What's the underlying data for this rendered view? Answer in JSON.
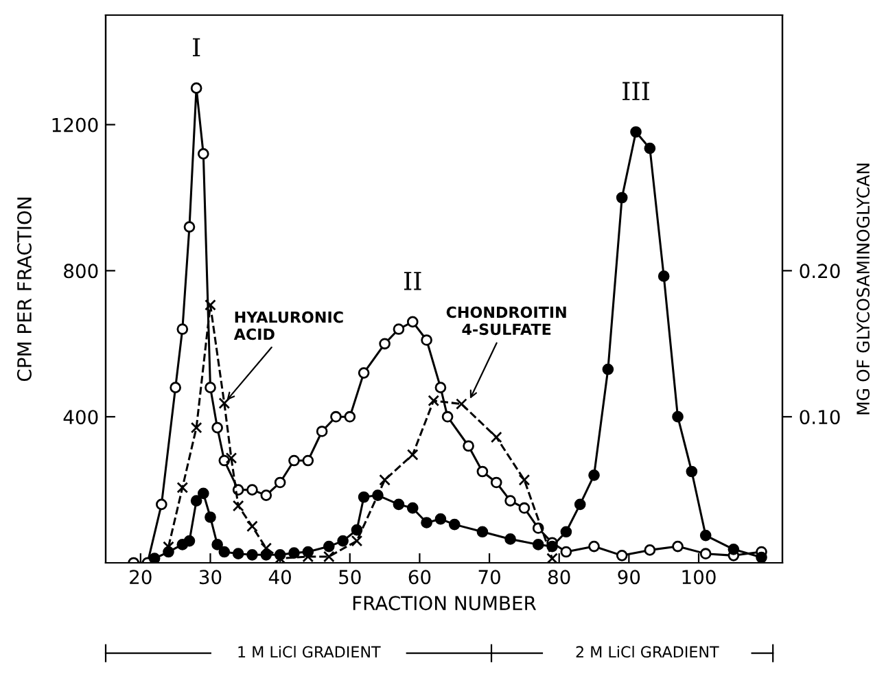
{
  "chart_data": {
    "type": "line",
    "xlabel": "FRACTION NUMBER",
    "ylabel": "CPM PER FRACTION",
    "y2label": "MG OF GLYCOSAMINOGLYCAN",
    "xlim": [
      15,
      112
    ],
    "xticks": [
      20,
      30,
      40,
      50,
      60,
      70,
      80,
      90,
      100
    ],
    "ylim": [
      0,
      1500
    ],
    "yticks": [
      400,
      800,
      1200
    ],
    "y2lim": [
      0,
      0.375
    ],
    "y2ticks": [
      {
        "value": 0.1,
        "label": "0.10"
      },
      {
        "value": 0.2,
        "label": "0.20"
      }
    ],
    "grid": false,
    "legend": false,
    "series": [
      {
        "color": "#ffffff",
        "marker": "circle",
        "line_style": "solid",
        "x": [
          19,
          21,
          23,
          25,
          26,
          27,
          28,
          29,
          30,
          31,
          32,
          34,
          36,
          38,
          40,
          42,
          44,
          46,
          48,
          50,
          52,
          55,
          57,
          59,
          61,
          63,
          64,
          67,
          69,
          71,
          73,
          75,
          77,
          79,
          81,
          85,
          89,
          93,
          97,
          101,
          105,
          109
        ],
        "values": [
          0,
          0,
          160,
          480,
          640,
          920,
          1300,
          1120,
          480,
          370,
          280,
          200,
          200,
          185,
          220,
          280,
          280,
          360,
          400,
          400,
          520,
          600,
          640,
          660,
          610,
          480,
          400,
          320,
          250,
          220,
          170,
          150,
          95,
          55,
          30,
          45,
          20,
          35,
          45,
          25,
          20,
          30
        ]
      },
      {
        "color": "#000000",
        "marker": "circle",
        "line_style": "solid",
        "x": [
          22,
          24,
          26,
          27,
          28,
          29,
          30,
          31,
          32,
          34,
          36,
          38,
          40,
          42,
          44,
          47,
          49,
          51,
          52,
          54,
          57,
          59,
          61,
          63,
          65,
          69,
          73,
          77,
          79,
          81,
          83,
          85,
          87,
          89,
          91,
          93,
          95,
          97,
          99,
          101,
          105,
          109
        ],
        "values": [
          12,
          30,
          50,
          60,
          170,
          190,
          125,
          50,
          30,
          25,
          22,
          22,
          22,
          27,
          30,
          45,
          60,
          90,
          180,
          185,
          160,
          150,
          110,
          120,
          105,
          85,
          65,
          50,
          45,
          85,
          160,
          240,
          530,
          1000,
          1180,
          1135,
          785,
          400,
          250,
          75,
          37,
          15
        ]
      },
      {
        "color": "#000000",
        "marker": "cross",
        "line_style": "dashed",
        "x": [
          24,
          26,
          28,
          30,
          32,
          33,
          34,
          36,
          38,
          40,
          44,
          47,
          51,
          55,
          59,
          62,
          66,
          71,
          75,
          79
        ],
        "values": [
          44,
          206,
          370,
          706,
          437,
          287,
          156,
          100,
          40,
          12,
          17,
          17,
          60,
          227,
          296,
          444,
          435,
          344,
          227,
          12
        ]
      }
    ],
    "annotations": [
      {
        "text": "I",
        "x": 28,
        "y": 1300
      },
      {
        "text": "II",
        "x": 59,
        "y": 660
      },
      {
        "text": "III",
        "x": 91,
        "y": 1180
      },
      {
        "text": "HYALURONIC\nACID",
        "x": 32,
        "y": 437
      },
      {
        "text": "CHONDROITIN\n4-SULFATE",
        "x": 67,
        "y": 440
      },
      "1 M LiCl GRADIENT",
      "2 M LiCl GRADIENT"
    ]
  }
}
